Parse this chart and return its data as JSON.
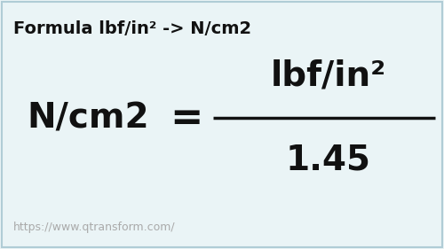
{
  "background_color": "#eaf4f6",
  "title_text": "Formula lbf/in² -> N/cm2",
  "title_fontsize": 14,
  "title_bold": true,
  "left_unit": "N/cm2",
  "right_top": "lbf/in²",
  "right_bottom": "1.45",
  "equals_sign": "=",
  "url_text": "https://www.qtransform.com/",
  "main_fontsize": 28,
  "url_fontsize": 9,
  "line_color": "#111111",
  "text_color": "#111111",
  "url_color": "#aaaaaa",
  "border_color": "#b0ccd6"
}
